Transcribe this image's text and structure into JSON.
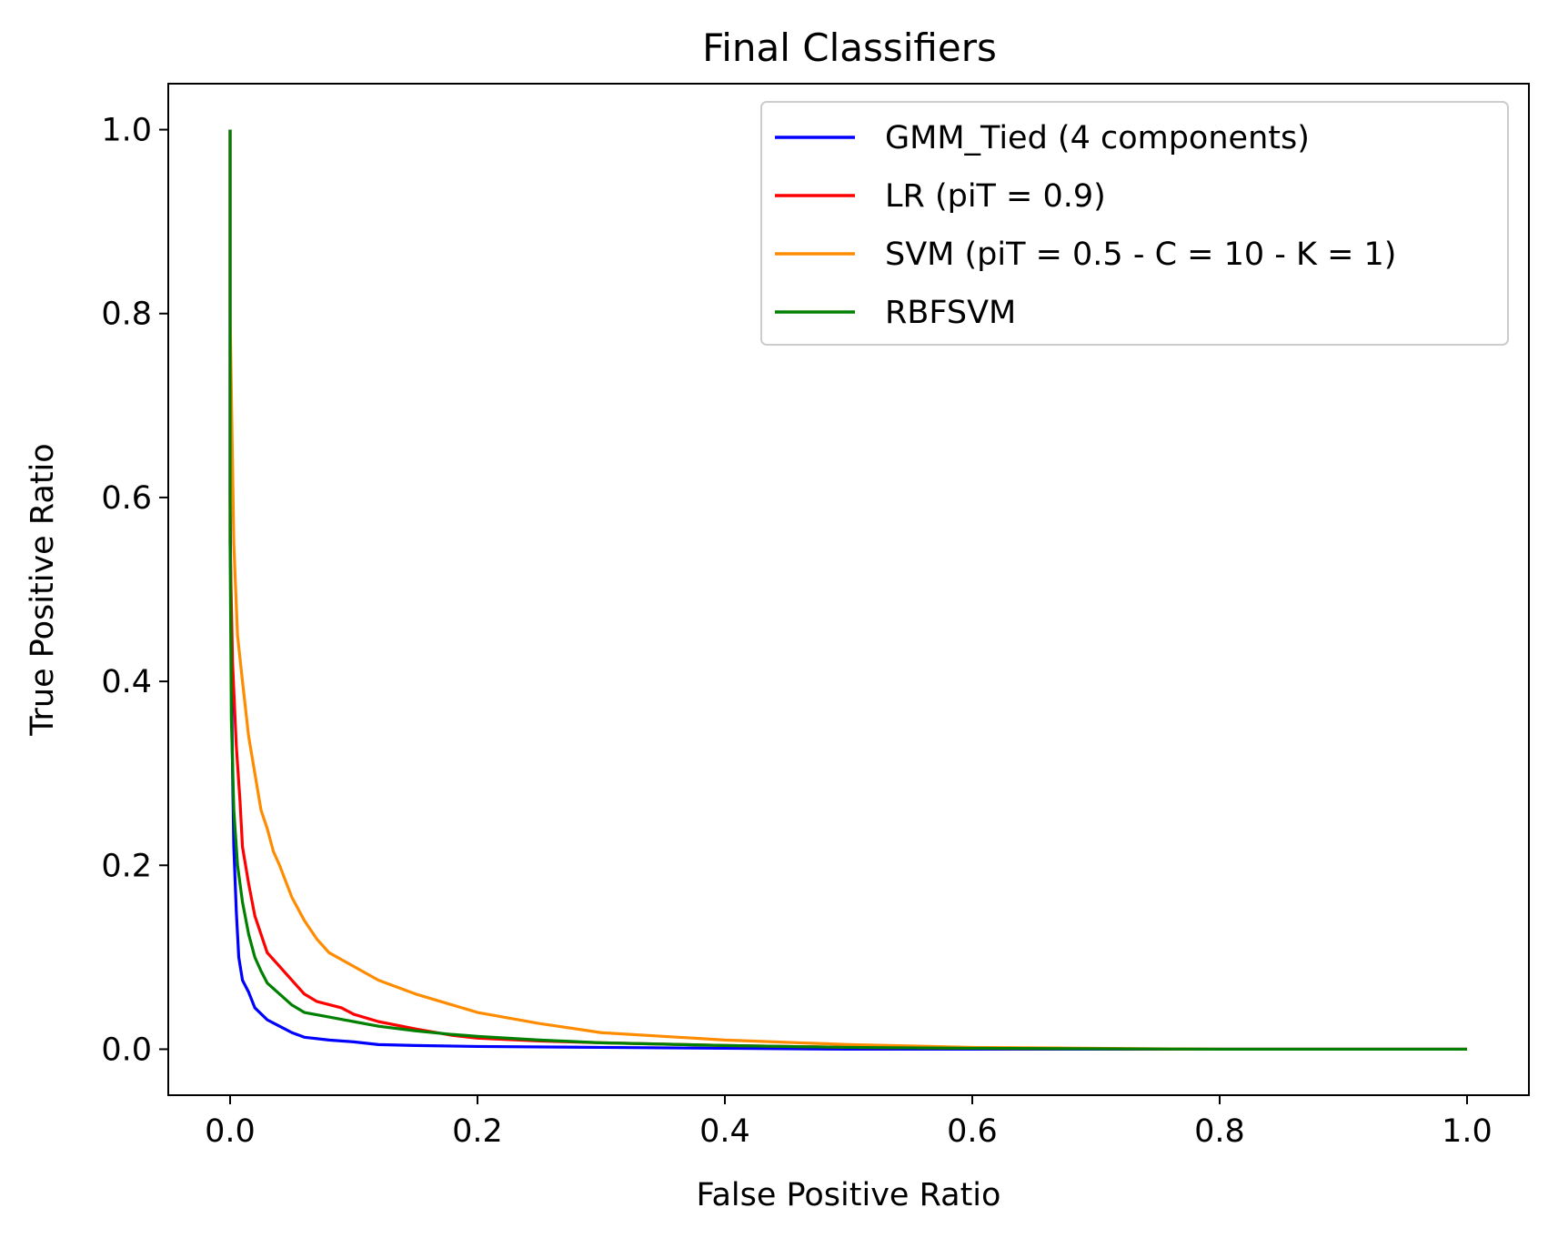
{
  "chart_data": {
    "type": "line",
    "title": "Final Classifiers",
    "xlabel": "False Positive Ratio",
    "ylabel": "True Positive Ratio",
    "xlim": [
      -0.05,
      1.05
    ],
    "ylim": [
      -0.05,
      1.05
    ],
    "xticks": [
      "0.0",
      "0.2",
      "0.4",
      "0.6",
      "0.8",
      "1.0"
    ],
    "yticks": [
      "0.0",
      "0.2",
      "0.4",
      "0.6",
      "0.8",
      "1.0"
    ],
    "grid": false,
    "legend_position": "upper right",
    "series": [
      {
        "name": "GMM_Tied (4 components)",
        "color": "#0000ff",
        "x": [
          0.0,
          0.0,
          0.001,
          0.002,
          0.003,
          0.005,
          0.007,
          0.01,
          0.015,
          0.02,
          0.03,
          0.04,
          0.05,
          0.06,
          0.08,
          0.1,
          0.12,
          0.15,
          0.2,
          0.3,
          0.4,
          0.5,
          0.6,
          0.8,
          1.0
        ],
        "y": [
          1.0,
          0.6,
          0.42,
          0.3,
          0.22,
          0.15,
          0.1,
          0.075,
          0.062,
          0.045,
          0.032,
          0.025,
          0.018,
          0.013,
          0.01,
          0.008,
          0.005,
          0.004,
          0.003,
          0.002,
          0.001,
          0.0,
          0.0,
          0.0,
          0.0
        ]
      },
      {
        "name": "LR (piT = 0.9)",
        "color": "#ff0000",
        "x": [
          0.0,
          0.0,
          0.002,
          0.005,
          0.008,
          0.01,
          0.015,
          0.02,
          0.025,
          0.03,
          0.04,
          0.05,
          0.06,
          0.07,
          0.09,
          0.1,
          0.12,
          0.15,
          0.18,
          0.2,
          0.25,
          0.3,
          0.4,
          0.5,
          0.6,
          0.8,
          1.0
        ],
        "y": [
          1.0,
          0.55,
          0.42,
          0.33,
          0.27,
          0.22,
          0.18,
          0.145,
          0.125,
          0.105,
          0.09,
          0.075,
          0.06,
          0.052,
          0.045,
          0.038,
          0.03,
          0.022,
          0.015,
          0.012,
          0.009,
          0.007,
          0.004,
          0.002,
          0.001,
          0.0,
          0.0
        ]
      },
      {
        "name": "SVM (piT = 0.5 - C = 10 - K = 1)",
        "color": "#ff8c00",
        "x": [
          0.0,
          0.0,
          0.003,
          0.006,
          0.01,
          0.015,
          0.02,
          0.025,
          0.03,
          0.035,
          0.04,
          0.05,
          0.06,
          0.07,
          0.08,
          0.1,
          0.12,
          0.15,
          0.18,
          0.2,
          0.25,
          0.3,
          0.35,
          0.4,
          0.5,
          0.6,
          0.7,
          0.8,
          1.0
        ],
        "y": [
          1.0,
          0.8,
          0.55,
          0.45,
          0.4,
          0.34,
          0.3,
          0.26,
          0.24,
          0.215,
          0.2,
          0.165,
          0.14,
          0.12,
          0.105,
          0.09,
          0.075,
          0.06,
          0.048,
          0.04,
          0.028,
          0.018,
          0.014,
          0.01,
          0.005,
          0.002,
          0.001,
          0.0,
          0.0
        ]
      },
      {
        "name": "RBFSVM",
        "color": "#008000",
        "x": [
          0.0,
          0.0,
          0.001,
          0.003,
          0.006,
          0.01,
          0.015,
          0.02,
          0.025,
          0.03,
          0.04,
          0.05,
          0.06,
          0.08,
          0.1,
          0.12,
          0.15,
          0.18,
          0.2,
          0.25,
          0.3,
          0.4,
          0.5,
          0.6,
          0.8,
          1.0
        ],
        "y": [
          1.0,
          0.55,
          0.36,
          0.26,
          0.2,
          0.16,
          0.125,
          0.1,
          0.085,
          0.072,
          0.06,
          0.048,
          0.04,
          0.035,
          0.03,
          0.025,
          0.02,
          0.016,
          0.014,
          0.01,
          0.007,
          0.004,
          0.002,
          0.001,
          0.0,
          0.0
        ]
      }
    ]
  }
}
